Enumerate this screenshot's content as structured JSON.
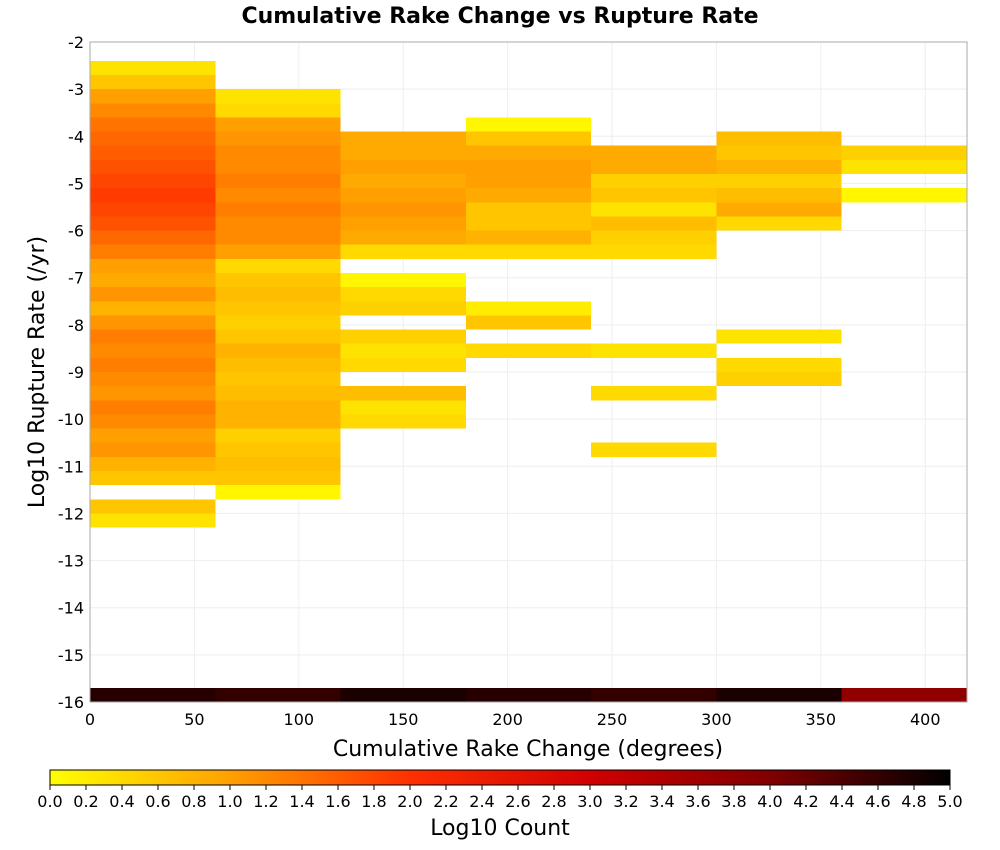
{
  "chart_data": {
    "type": "heatmap",
    "title": "Cumulative Rake Change vs Rupture Rate",
    "xlabel": "Cumulative Rake Change (degrees)",
    "ylabel": "Log10 Rupture Rate (/yr)",
    "xlim": [
      0,
      420
    ],
    "ylim": [
      -16,
      -2
    ],
    "x_ticks": [
      "0",
      "50",
      "100",
      "150",
      "200",
      "250",
      "300",
      "350",
      "400"
    ],
    "y_ticks": [
      "-2",
      "-3",
      "-4",
      "-5",
      "-6",
      "-7",
      "-8",
      "-9",
      "-10",
      "-11",
      "-12",
      "-13",
      "-14",
      "-15",
      "-16"
    ],
    "x_bin_width": 60,
    "y_bin_height": 0.3,
    "grid": true,
    "colorbar": {
      "label": "Log10 Count",
      "min": 0.0,
      "max": 5.0,
      "ticks": [
        "0.0",
        "0.2",
        "0.4",
        "0.6",
        "0.8",
        "1.0",
        "1.2",
        "1.4",
        "1.6",
        "1.8",
        "2.0",
        "2.2",
        "2.4",
        "2.6",
        "2.8",
        "3.0",
        "3.2",
        "3.4",
        "3.6",
        "3.8",
        "4.0",
        "4.2",
        "4.4",
        "4.6",
        "4.8",
        "5.0"
      ],
      "colors": [
        "#ffff00",
        "#ffa000",
        "#ff3000",
        "#d00000",
        "#800000",
        "#000000"
      ]
    },
    "columns": [
      {
        "x_start": 0,
        "bins": [
          [
            -2.7,
            0.3
          ],
          [
            -3.0,
            0.6
          ],
          [
            -3.3,
            1.0
          ],
          [
            -3.6,
            1.2
          ],
          [
            -3.9,
            1.4
          ],
          [
            -4.2,
            1.5
          ],
          [
            -4.5,
            1.6
          ],
          [
            -4.8,
            1.7
          ],
          [
            -5.1,
            1.8
          ],
          [
            -5.4,
            1.9
          ],
          [
            -5.7,
            1.8
          ],
          [
            -6.0,
            1.7
          ],
          [
            -6.3,
            1.5
          ],
          [
            -6.6,
            1.3
          ],
          [
            -6.9,
            1.0
          ],
          [
            -7.2,
            0.9
          ],
          [
            -7.5,
            1.1
          ],
          [
            -7.8,
            0.8
          ],
          [
            -8.1,
            1.1
          ],
          [
            -8.4,
            1.3
          ],
          [
            -8.7,
            1.2
          ],
          [
            -9.0,
            1.3
          ],
          [
            -9.3,
            1.2
          ],
          [
            -9.6,
            1.1
          ],
          [
            -9.9,
            1.3
          ],
          [
            -10.2,
            1.2
          ],
          [
            -10.5,
            1.0
          ],
          [
            -10.8,
            1.1
          ],
          [
            -11.1,
            0.8
          ],
          [
            -11.4,
            0.6
          ],
          [
            -12.0,
            0.6
          ],
          [
            -12.3,
            0.3
          ],
          [
            -16.0,
            4.7
          ]
        ]
      },
      {
        "x_start": 60,
        "bins": [
          [
            -3.3,
            0.3
          ],
          [
            -3.6,
            0.4
          ],
          [
            -3.9,
            1.0
          ],
          [
            -4.2,
            1.1
          ],
          [
            -4.5,
            1.2
          ],
          [
            -4.8,
            1.2
          ],
          [
            -5.1,
            1.3
          ],
          [
            -5.4,
            1.2
          ],
          [
            -5.7,
            1.3
          ],
          [
            -6.0,
            1.2
          ],
          [
            -6.3,
            1.2
          ],
          [
            -6.6,
            1.0
          ],
          [
            -6.9,
            0.4
          ],
          [
            -7.2,
            0.6
          ],
          [
            -7.5,
            0.7
          ],
          [
            -7.8,
            0.6
          ],
          [
            -8.1,
            0.5
          ],
          [
            -8.4,
            0.6
          ],
          [
            -8.7,
            0.8
          ],
          [
            -9.0,
            0.7
          ],
          [
            -9.3,
            0.6
          ],
          [
            -9.6,
            0.7
          ],
          [
            -9.9,
            0.8
          ],
          [
            -10.2,
            0.8
          ],
          [
            -10.5,
            0.5
          ],
          [
            -10.8,
            0.6
          ],
          [
            -11.1,
            0.7
          ],
          [
            -11.4,
            0.6
          ],
          [
            -11.7,
            0.1
          ],
          [
            -16.0,
            4.6
          ]
        ]
      },
      {
        "x_start": 120,
        "bins": [
          [
            -4.2,
            0.9
          ],
          [
            -4.5,
            0.9
          ],
          [
            -4.8,
            1.0
          ],
          [
            -5.1,
            0.9
          ],
          [
            -5.4,
            1.0
          ],
          [
            -5.7,
            1.1
          ],
          [
            -6.0,
            1.0
          ],
          [
            -6.3,
            0.9
          ],
          [
            -6.6,
            0.4
          ],
          [
            -7.2,
            0.1
          ],
          [
            -7.5,
            0.4
          ],
          [
            -7.8,
            0.5
          ],
          [
            -8.4,
            0.5
          ],
          [
            -8.7,
            0.3
          ],
          [
            -9.0,
            0.4
          ],
          [
            -9.6,
            0.7
          ],
          [
            -9.9,
            0.3
          ],
          [
            -10.2,
            0.4
          ],
          [
            -16.0,
            4.8
          ]
        ]
      },
      {
        "x_start": 180,
        "bins": [
          [
            -3.9,
            0.1
          ],
          [
            -4.2,
            0.6
          ],
          [
            -4.5,
            0.9
          ],
          [
            -4.8,
            1.0
          ],
          [
            -5.1,
            1.0
          ],
          [
            -5.4,
            0.9
          ],
          [
            -5.7,
            0.6
          ],
          [
            -6.0,
            0.6
          ],
          [
            -6.3,
            0.8
          ],
          [
            -6.6,
            0.4
          ],
          [
            -7.8,
            0.2
          ],
          [
            -8.1,
            0.6
          ],
          [
            -8.7,
            0.4
          ],
          [
            -16.0,
            4.7
          ]
        ]
      },
      {
        "x_start": 240,
        "bins": [
          [
            -4.5,
            0.9
          ],
          [
            -4.8,
            0.9
          ],
          [
            -5.1,
            0.5
          ],
          [
            -5.4,
            0.6
          ],
          [
            -5.7,
            0.3
          ],
          [
            -6.0,
            0.7
          ],
          [
            -6.3,
            0.5
          ],
          [
            -6.6,
            0.4
          ],
          [
            -8.7,
            0.3
          ],
          [
            -9.6,
            0.4
          ],
          [
            -10.8,
            0.4
          ],
          [
            -16.0,
            4.6
          ]
        ]
      },
      {
        "x_start": 300,
        "bins": [
          [
            -4.2,
            0.7
          ],
          [
            -4.5,
            0.6
          ],
          [
            -4.8,
            0.8
          ],
          [
            -5.1,
            0.5
          ],
          [
            -5.4,
            0.7
          ],
          [
            -5.7,
            0.9
          ],
          [
            -6.0,
            0.4
          ],
          [
            -8.4,
            0.3
          ],
          [
            -9.0,
            0.4
          ],
          [
            -9.3,
            0.5
          ],
          [
            -16.0,
            4.8
          ]
        ]
      },
      {
        "x_start": 360,
        "bins": [
          [
            -4.5,
            0.5
          ],
          [
            -4.8,
            0.3
          ],
          [
            -5.4,
            0.1
          ],
          [
            -16.0,
            3.8
          ]
        ]
      }
    ]
  }
}
